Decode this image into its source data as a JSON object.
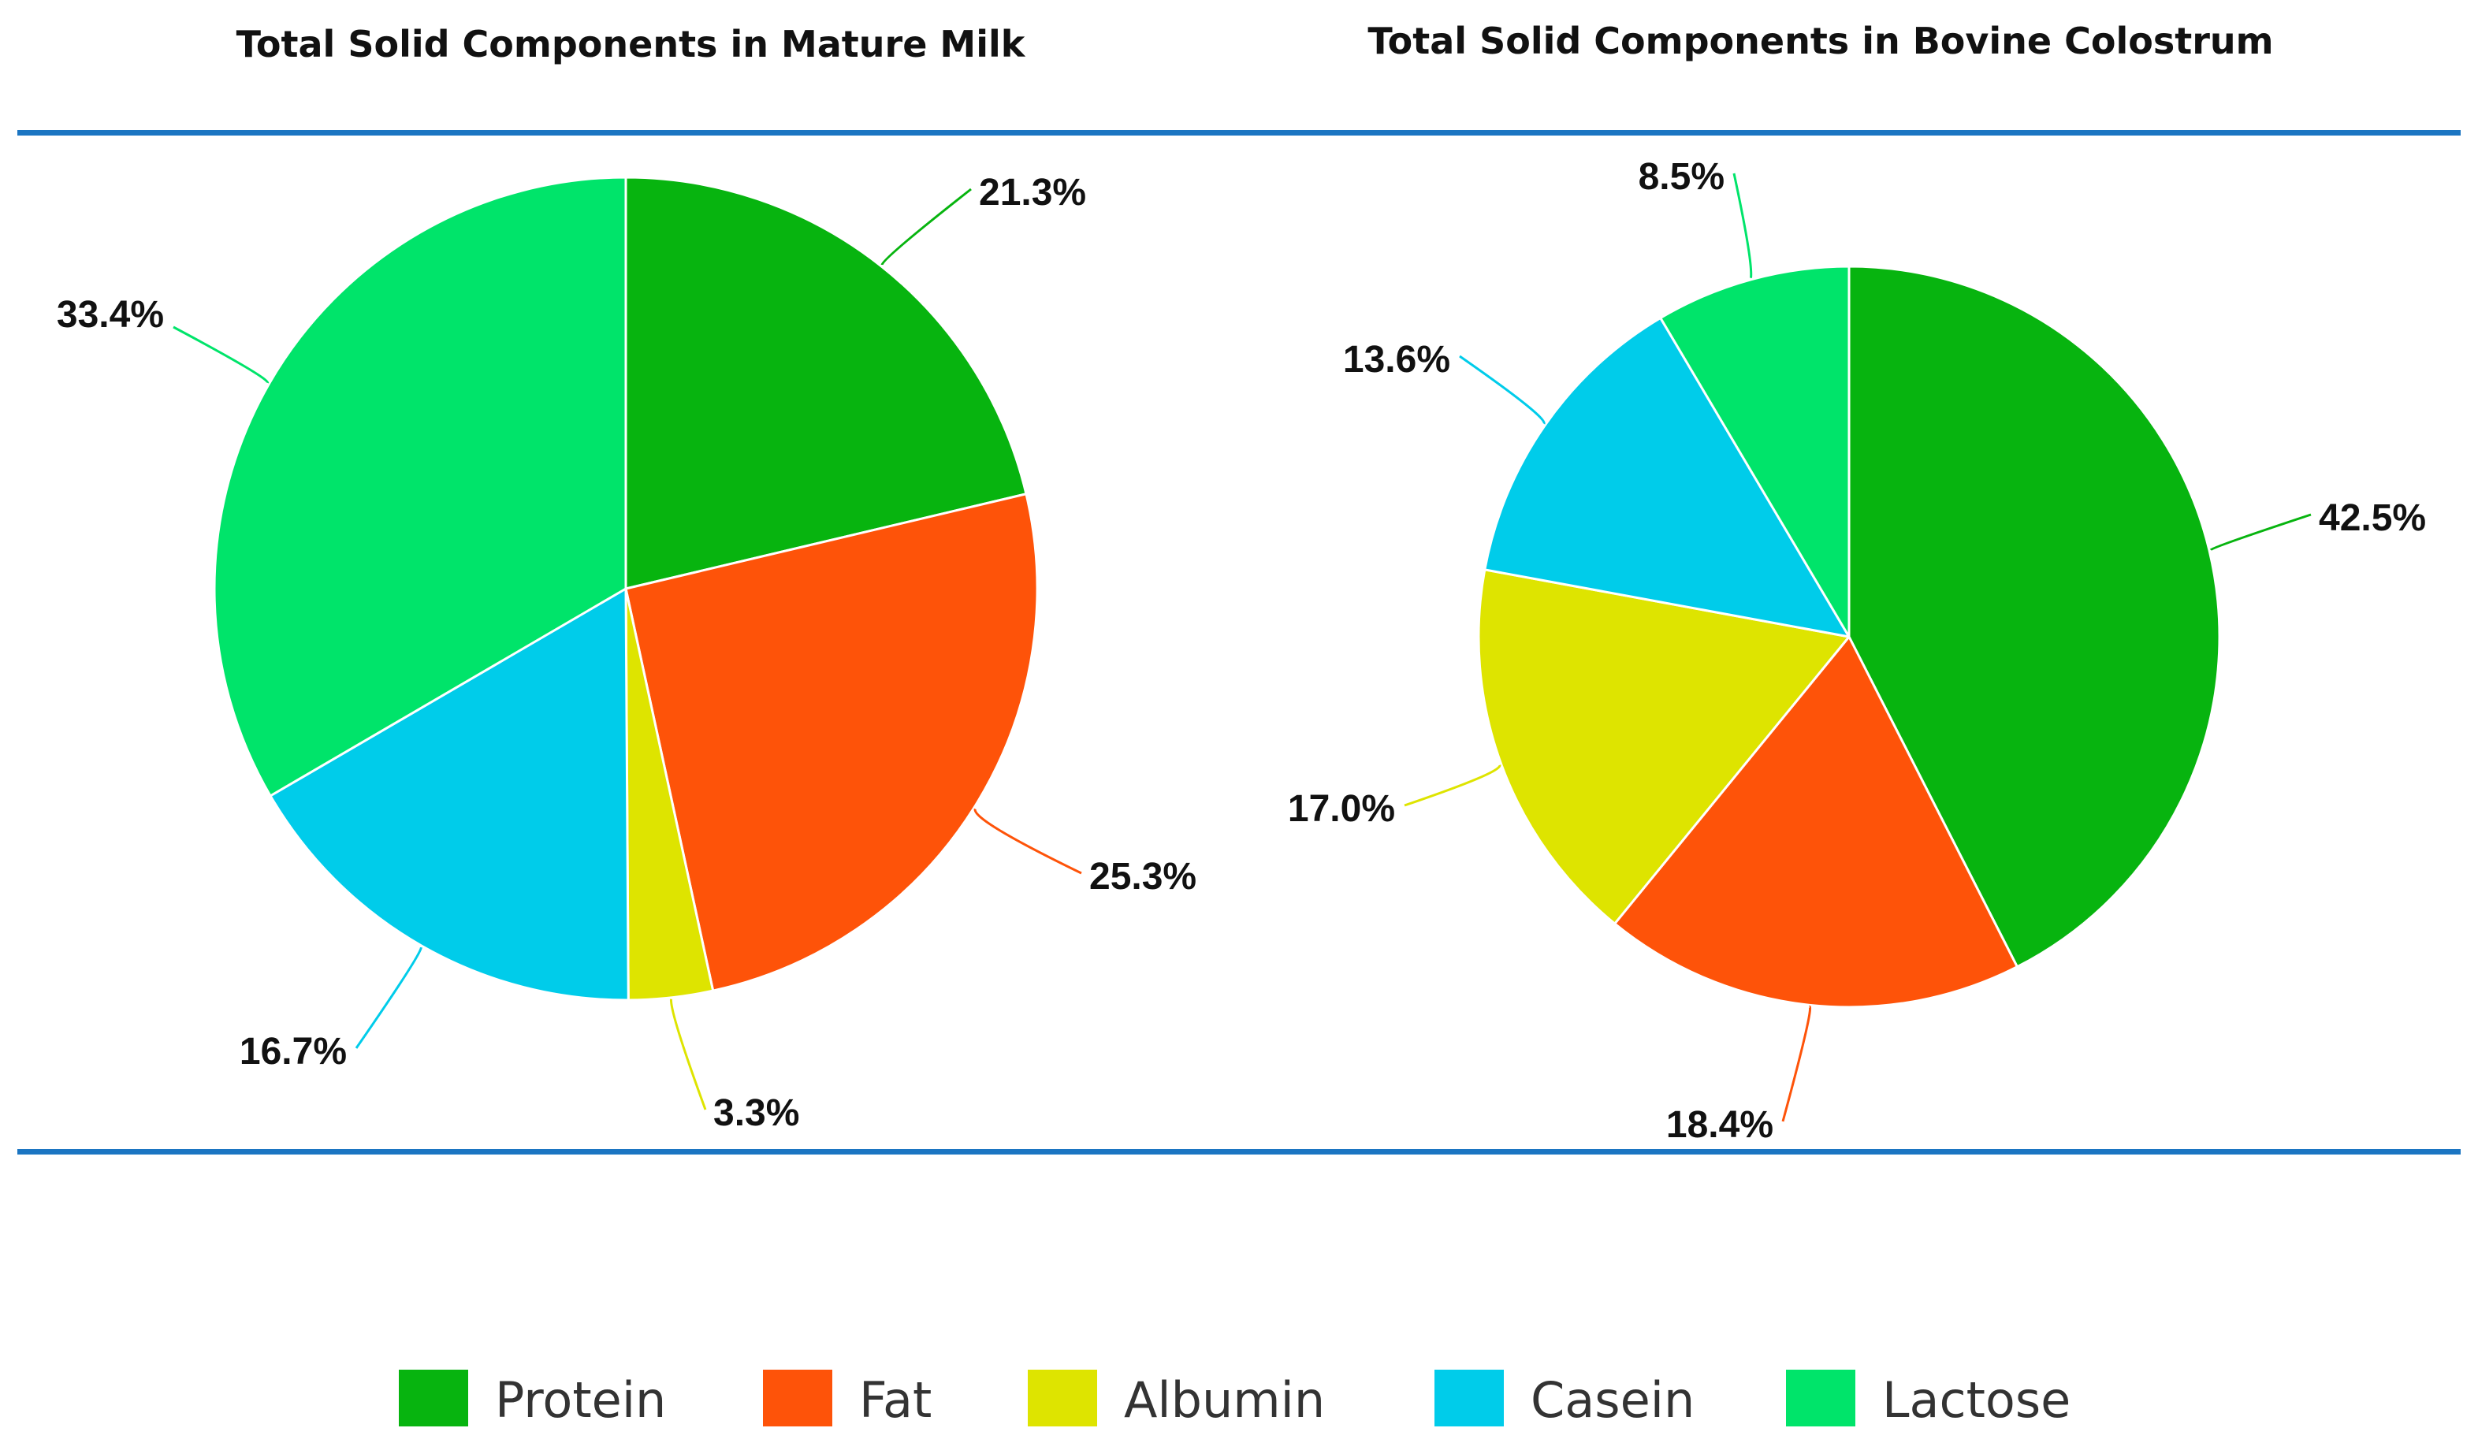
{
  "legend": [
    {
      "label": "Protein",
      "color": "#07b40f"
    },
    {
      "label": "Fat",
      "color": "#fe5309"
    },
    {
      "label": "Albumin",
      "color": "#dee400"
    },
    {
      "label": "Casein",
      "color": "#00ccea"
    },
    {
      "label": "Lactose",
      "color": "#00e46a"
    }
  ],
  "colors": {
    "divider": "#1b75c2"
  },
  "chart_data": [
    {
      "type": "pie",
      "title": "Total Solid Components in Mature Milk",
      "categories": [
        "Protein",
        "Fat",
        "Albumin",
        "Casein",
        "Lactose"
      ],
      "values": [
        21.3,
        25.3,
        3.3,
        16.7,
        33.4
      ],
      "labels": [
        "21.3%",
        "25.3%",
        "3.3%",
        "16.7%",
        "33.4%"
      ],
      "start": "12 o'clock",
      "direction": "clockwise"
    },
    {
      "type": "pie",
      "title": "Total Solid Components in Bovine Colostrum",
      "categories": [
        "Protein",
        "Fat",
        "Albumin",
        "Casein",
        "Lactose"
      ],
      "values": [
        42.5,
        18.4,
        17.0,
        13.6,
        8.5
      ],
      "labels": [
        "42.5%",
        "18.4%",
        "17.0%",
        "13.6%",
        "8.5%"
      ],
      "start": "12 o'clock",
      "direction": "clockwise"
    }
  ]
}
